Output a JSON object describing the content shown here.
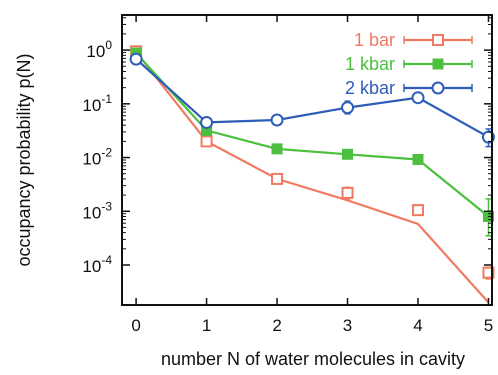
{
  "chart_data": {
    "type": "line",
    "xlabel": "number N of water molecules in cavity",
    "ylabel": "occupancy probability p(N)",
    "x": [
      0,
      1,
      2,
      3,
      4,
      5
    ],
    "xlim": [
      -0.2,
      5.05
    ],
    "ylim": [
      1.8e-05,
      4.5
    ],
    "y_scale": "log",
    "x_ticks": [
      0,
      1,
      2,
      3,
      4,
      5
    ],
    "x_tick_labels": [
      "0",
      "1",
      "2",
      "3",
      "4",
      "5"
    ],
    "y_ticks": [
      1,
      0.1,
      0.01,
      0.001,
      0.0001
    ],
    "y_tick_labels": [
      {
        "base": "10",
        "exp": "0"
      },
      {
        "base": "10",
        "exp": "-1"
      },
      {
        "base": "10",
        "exp": "-2"
      },
      {
        "base": "10",
        "exp": "-3"
      },
      {
        "base": "10",
        "exp": "-4"
      }
    ],
    "grid": false,
    "legend_position": "top-right",
    "series": [
      {
        "name": "1 bar",
        "color": "#f07a62",
        "marker": "open-square",
        "line_values": [
          0.92,
          0.02,
          0.004,
          0.0016,
          0.00058,
          2e-05
        ],
        "marker_values": [
          0.95,
          0.02,
          0.004,
          0.0022,
          0.00105,
          7.2e-05
        ],
        "error_low": [
          0.85,
          0.017,
          0.0035,
          0.0017,
          0.00085,
          5.5e-05
        ],
        "error_high": [
          1.05,
          0.023,
          0.0045,
          0.0028,
          0.0013,
          9e-05
        ]
      },
      {
        "name": "1 kbar",
        "color": "#4cbf3f",
        "marker": "filled-square",
        "line_values": [
          0.88,
          0.032,
          0.0145,
          0.0115,
          0.0092,
          0.0008
        ],
        "marker_values": [
          0.88,
          0.032,
          0.0145,
          0.0115,
          0.0092,
          0.0008
        ],
        "error_low": [
          0.84,
          0.03,
          0.0138,
          0.011,
          0.0088,
          0.00035
        ],
        "error_high": [
          0.92,
          0.034,
          0.0152,
          0.012,
          0.0097,
          0.0017
        ]
      },
      {
        "name": "2 kbar",
        "color": "#2e5db8",
        "marker": "open-circle",
        "line_values": [
          0.68,
          0.045,
          0.05,
          0.085,
          0.13,
          0.024
        ],
        "marker_values": [
          0.68,
          0.045,
          0.05,
          0.085,
          0.13,
          0.024
        ],
        "error_low": [
          0.64,
          0.042,
          0.046,
          0.065,
          0.112,
          0.016
        ],
        "error_high": [
          0.72,
          0.048,
          0.054,
          0.112,
          0.15,
          0.034
        ]
      }
    ]
  }
}
